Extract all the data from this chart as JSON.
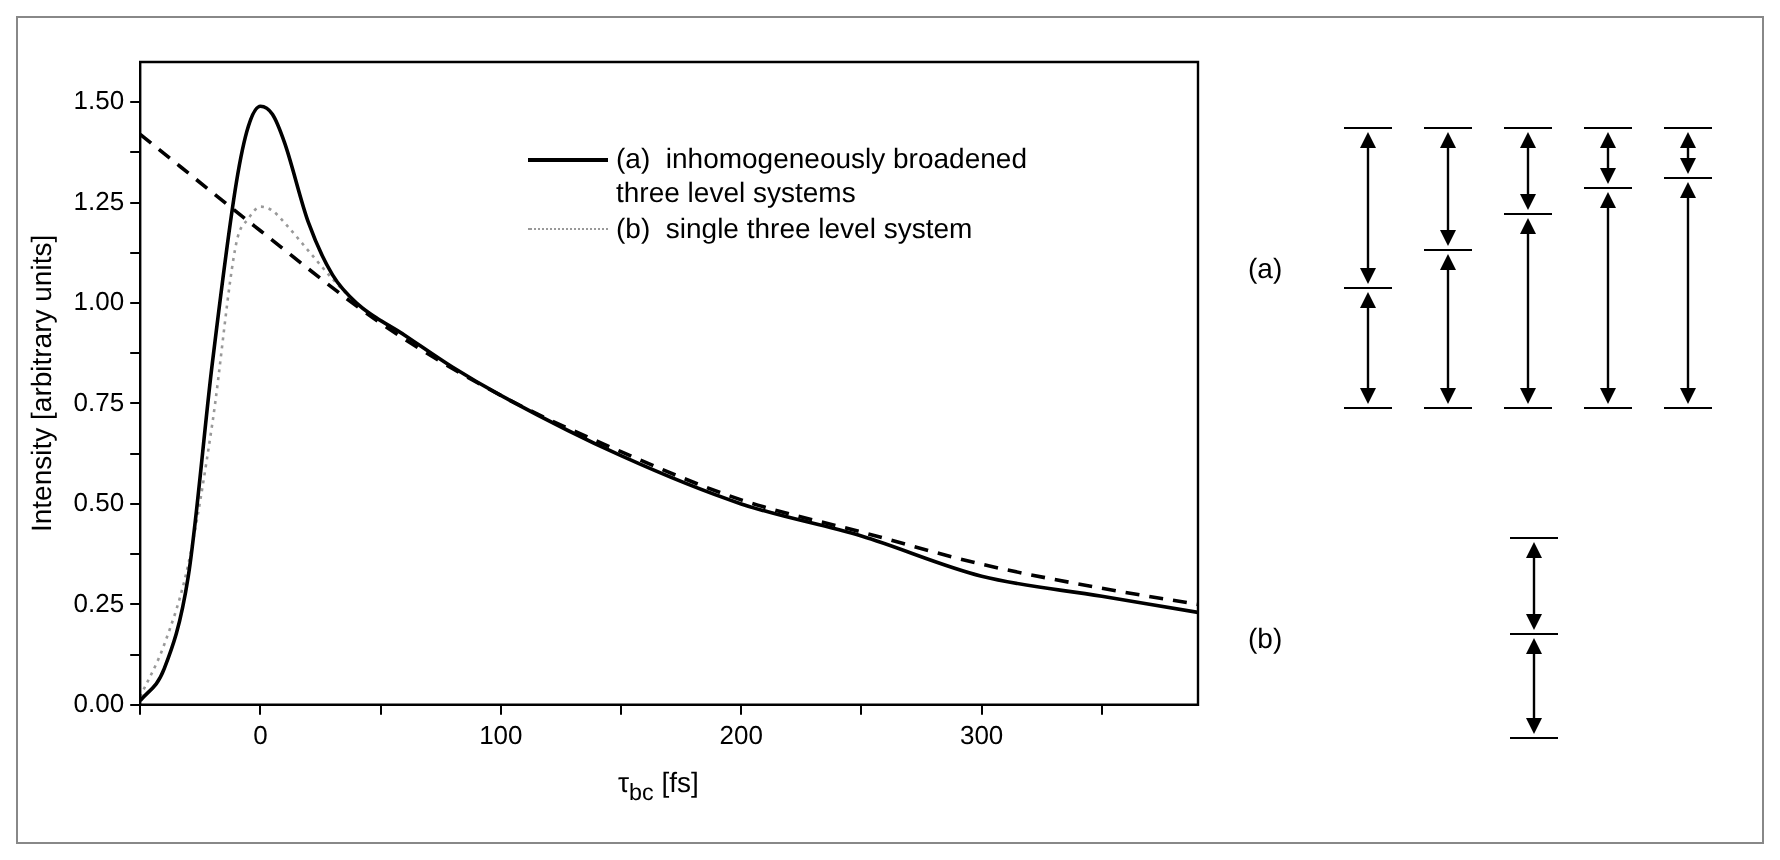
{
  "chart_data": {
    "type": "line",
    "xlabel": "τ$_{bc}$ [fs]",
    "ylabel": "Intensity [arbitrary units]",
    "xlim": [
      -50,
      390
    ],
    "xticks": [
      {
        "value": -50,
        "label": null
      },
      0,
      {
        "value": 50,
        "label": null
      },
      100,
      {
        "value": 150,
        "label": null
      },
      200,
      {
        "value": 250,
        "label": null
      },
      300,
      {
        "value": 350,
        "label": null
      }
    ],
    "ylim": [
      0,
      1.6
    ],
    "yticks": [
      "0.00",
      {
        "value": 0.125,
        "label": null
      },
      {
        "value": 0.25,
        "label": "0.25"
      },
      {
        "value": 0.375,
        "label": null
      },
      {
        "value": 0.5,
        "label": "0.50"
      },
      {
        "value": 0.625,
        "label": null
      },
      {
        "value": 0.75,
        "label": "0.75"
      },
      {
        "value": 0.875,
        "label": null
      },
      {
        "value": 1,
        "label": "1.00"
      },
      {
        "value": 1.125,
        "label": null
      },
      {
        "value": 1.25,
        "label": "1.25"
      },
      {
        "value": 1.375,
        "label": null
      },
      {
        "value": 1.5,
        "label": "1.50"
      }
    ],
    "grid": false,
    "legend": "top right",
    "marker": "none",
    "series": [
      {
        "name": "(a)  inhomogeneously broadened three level systems",
        "color": "#000000",
        "line_style": "solid",
        "x": [
          -50,
          -40,
          -30,
          -20,
          -10,
          -5,
          0,
          5,
          10,
          20,
          30,
          40,
          60,
          80,
          100,
          150,
          200,
          250,
          300,
          350,
          390
        ],
        "values": [
          0.01,
          0.09,
          0.32,
          0.85,
          1.3,
          1.44,
          1.49,
          1.47,
          1.4,
          1.2,
          1.07,
          1.0,
          0.92,
          0.84,
          0.77,
          0.62,
          0.5,
          0.42,
          0.32,
          0.27,
          0.23
        ]
      },
      {
        "name": "(b)  single three level system",
        "color": "#999999",
        "line_style": "dotted",
        "x": [
          -50,
          -40,
          -30,
          -20,
          -10,
          -5,
          0,
          5,
          10,
          20,
          30,
          40,
          60
        ],
        "values": [
          0.02,
          0.15,
          0.35,
          0.7,
          1.15,
          1.21,
          1.24,
          1.23,
          1.2,
          1.13,
          1.06,
          1.0,
          0.92
        ]
      },
      {
        "color": "#000000",
        "line_style": "dashed",
        "x": [
          -50,
          0,
          50,
          100,
          150,
          200,
          250,
          300,
          350,
          390
        ],
        "values": [
          1.42,
          1.18,
          0.95,
          0.77,
          0.63,
          0.51,
          0.43,
          0.35,
          0.29,
          0.25
        ]
      }
    ],
    "annotations": [
      "(a)",
      "(b)"
    ]
  }
}
